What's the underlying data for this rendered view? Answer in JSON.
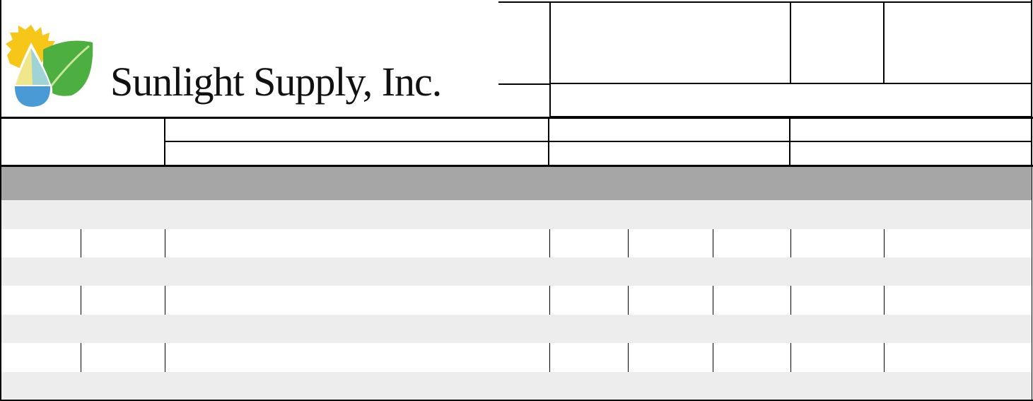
{
  "logo": {
    "text": "Sunlight Supply, Inc.",
    "name": "Sunlight Supply",
    "suffix": "Inc.",
    "colors": {
      "sun": "#f6c619",
      "drop_top": "#f0e68c",
      "drop_mid": "#9fd3d6",
      "drop_bottom": "#4a9ad6",
      "leaf": "#4caf3f"
    }
  },
  "form": {
    "section_band_color": "#a6a6a6",
    "alt_row_color": "#ededed",
    "rows": [
      {
        "type": "shaded"
      },
      {
        "type": "cells"
      },
      {
        "type": "shaded"
      },
      {
        "type": "cells"
      },
      {
        "type": "shaded"
      },
      {
        "type": "cells"
      },
      {
        "type": "shaded"
      }
    ]
  }
}
